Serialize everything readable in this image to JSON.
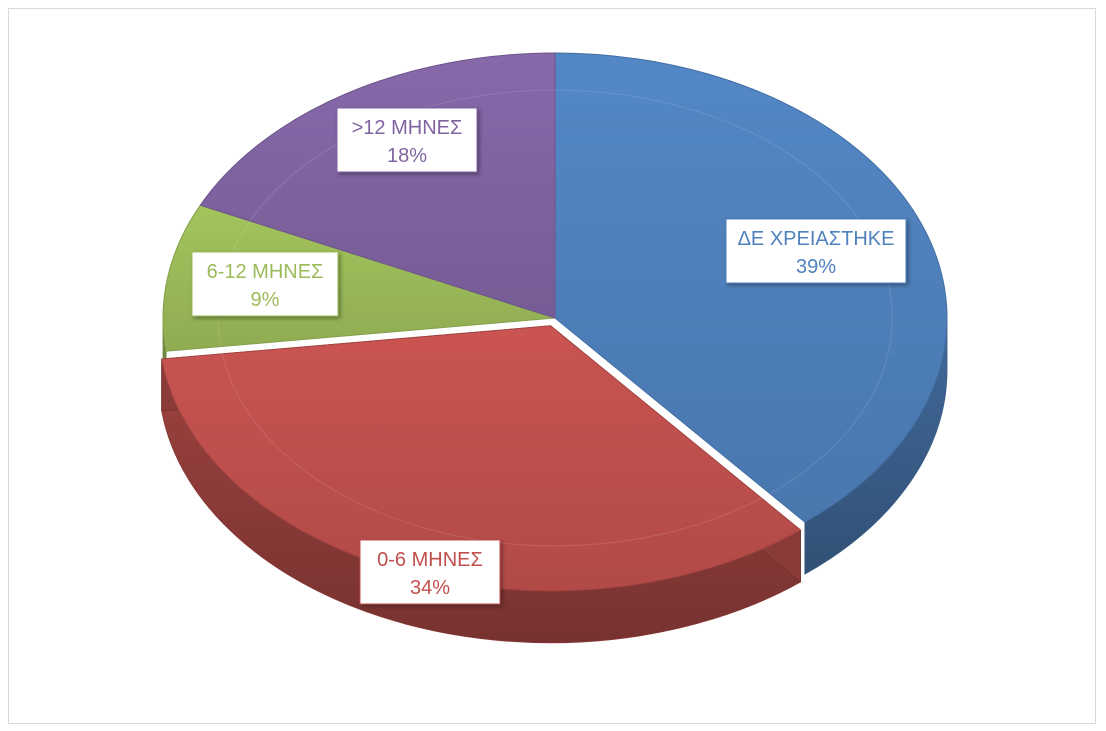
{
  "chart_data": {
    "type": "pie",
    "style": "3d",
    "categories": [
      "ΔΕ ΧΡΕΙΑΣΤΗΚΕ",
      "0-6 ΜΗΝΕΣ",
      "6-12 ΜΗΝΕΣ",
      ">12 ΜΗΝΕΣ"
    ],
    "values": [
      39,
      34,
      9,
      18
    ],
    "value_labels": [
      "39%",
      "34%",
      "9%",
      "18%"
    ],
    "colors": [
      "#4f81bd",
      "#c0504d",
      "#9bbb59",
      "#8064a2"
    ],
    "exploded": "0-6 ΜΗΝΕΣ",
    "legend": false,
    "title": ""
  }
}
